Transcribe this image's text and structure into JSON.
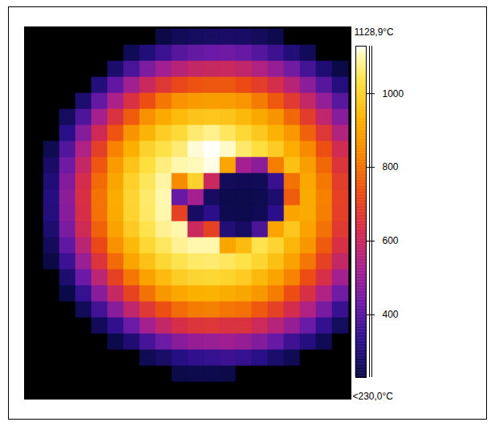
{
  "chart_data": {
    "type": "heatmap",
    "cells": [
      [
        180,
        180,
        180,
        180,
        180,
        180,
        180,
        180,
        232,
        255,
        267,
        272,
        278,
        275,
        260,
        240,
        180,
        180,
        180,
        180
      ],
      [
        180,
        180,
        180,
        180,
        180,
        180,
        250,
        304,
        356,
        397,
        418,
        428,
        434,
        422,
        394,
        356,
        302,
        257,
        180,
        180
      ],
      [
        180,
        180,
        180,
        180,
        180,
        286,
        378,
        456,
        516,
        561,
        586,
        595,
        598,
        581,
        545,
        498,
        439,
        370,
        295,
        234
      ],
      [
        180,
        180,
        180,
        180,
        307,
        413,
        514,
        600,
        666,
        717,
        743,
        752,
        751,
        729,
        686,
        630,
        561,
        482,
        397,
        310
      ],
      [
        180,
        180,
        180,
        290,
        418,
        534,
        641,
        735,
        808,
        863,
        882,
        889,
        885,
        868,
        818,
        753,
        677,
        588,
        494,
        401
      ],
      [
        180,
        180,
        263,
        384,
        522,
        645,
        761,
        860,
        913,
        948,
        969,
        975,
        968,
        946,
        912,
        866,
        781,
        684,
        578,
        475
      ],
      [
        180,
        180,
        324,
        470,
        612,
        746,
        867,
        935,
        988,
        1017,
        1060,
        1080,
        1050,
        1013,
        977,
        930,
        873,
        769,
        666,
        550
      ],
      [
        180,
        244,
        389,
        539,
        694,
        828,
        924,
        998,
        1034,
        1064,
        1115,
        1128,
        1110,
        1057,
        1025,
        985,
        922,
        845,
        737,
        616
      ],
      [
        180,
        275,
        435,
        590,
        749,
        882,
        967,
        1027,
        1069,
        1100,
        1105,
        1120,
        900,
        520,
        480,
        820,
        959,
        887,
        782,
        656
      ],
      [
        180,
        299,
        466,
        625,
        786,
        906,
        995,
        1047,
        1094,
        850,
        1000,
        600,
        260,
        250,
        255,
        350,
        800,
        907,
        812,
        686
      ],
      [
        180,
        312,
        480,
        640,
        803,
        917,
        1005,
        1057,
        1100,
        420,
        520,
        270,
        240,
        240,
        245,
        290,
        760,
        916,
        827,
        698
      ],
      [
        180,
        307,
        475,
        634,
        797,
        913,
        1002,
        1054,
        1100,
        700,
        270,
        330,
        245,
        240,
        250,
        330,
        900,
        913,
        822,
        694
      ],
      [
        180,
        288,
        453,
        610,
        770,
        896,
        983,
        1038,
        1082,
        1100,
        600,
        700,
        300,
        270,
        380,
        900,
        974,
        898,
        799,
        673
      ],
      [
        180,
        260,
        411,
        564,
        721,
        858,
        944,
        1011,
        1050,
        1084,
        1100,
        1100,
        900,
        950,
        1039,
        1005,
        941,
        871,
        759,
        638
      ],
      [
        180,
        232,
        356,
        502,
        654,
        785,
        900,
        964,
        1012,
        1040,
        1056,
        1060,
        1049,
        1035,
        1006,
        959,
        896,
        806,
        700,
        586
      ],
      [
        180,
        180,
        290,
        427,
        566,
        699,
        809,
        897,
        950,
        989,
        1007,
        1010,
        1001,
        985,
        945,
        900,
        832,
        735,
        635,
        520
      ],
      [
        180,
        180,
        233,
        345,
        474,
        591,
        705,
        800,
        873,
        910,
        926,
        930,
        918,
        906,
        876,
        820,
        734,
        639,
        543,
        438
      ],
      [
        180,
        180,
        180,
        255,
        366,
        474,
        576,
        670,
        737,
        790,
        818,
        824,
        806,
        798,
        754,
        698,
        624,
        542,
        450,
        350
      ],
      [
        180,
        180,
        180,
        180,
        257,
        338,
        428,
        519,
        584,
        632,
        658,
        663,
        647,
        648,
        608,
        558,
        496,
        426,
        343,
        262
      ],
      [
        180,
        180,
        180,
        180,
        180,
        237,
        296,
        376,
        432,
        475,
        498,
        503,
        512,
        498,
        466,
        422,
        360,
        312,
        253,
        180
      ],
      [
        180,
        180,
        180,
        180,
        180,
        180,
        180,
        247,
        280,
        318,
        339,
        344,
        356,
        347,
        321,
        284,
        252,
        180,
        180,
        180
      ],
      [
        180,
        180,
        180,
        180,
        180,
        180,
        180,
        180,
        180,
        235,
        240,
        240,
        235,
        180,
        180,
        180,
        180,
        180,
        180,
        180
      ],
      [
        180,
        180,
        180,
        180,
        180,
        180,
        180,
        180,
        180,
        180,
        180,
        180,
        180,
        180,
        180,
        180,
        180,
        180,
        180,
        180
      ]
    ],
    "colorbar": {
      "range": [
        230,
        1128.9
      ],
      "ticks": [
        {
          "value": 230,
          "label": "<230,0°C"
        },
        400,
        600,
        800,
        1000,
        {
          "value": 1128.9,
          "label": "1128,9°C"
        }
      ]
    }
  }
}
